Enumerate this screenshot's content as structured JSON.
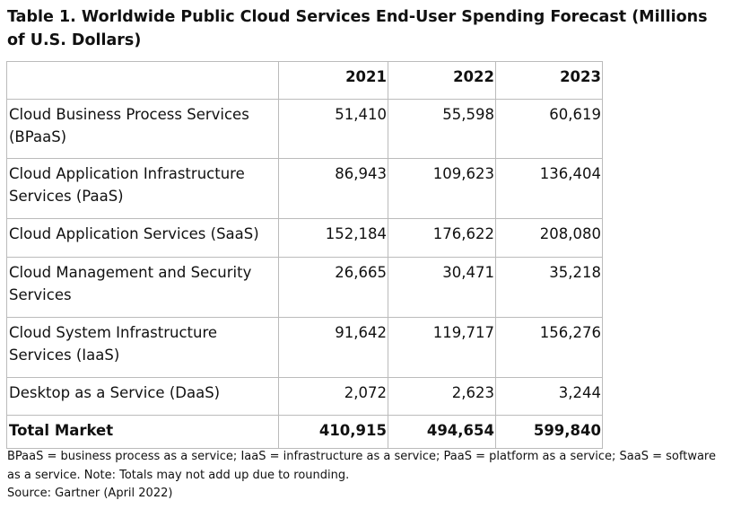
{
  "title": "Table 1. Worldwide Public Cloud Services End-User Spending Forecast (Millions of U.S. Dollars)",
  "table": {
    "header": [
      "",
      "2021",
      "2022",
      "2023"
    ],
    "rows": [
      [
        "Cloud Business Process Services (BPaaS)",
        "51,410",
        "55,598",
        "60,619"
      ],
      [
        "Cloud Application Infrastructure Services (PaaS)",
        "86,943",
        "109,623",
        "136,404"
      ],
      [
        "Cloud Application Services (SaaS)",
        "152,184",
        "176,622",
        "208,080"
      ],
      [
        "Cloud Management and Security Services",
        "26,665",
        "30,471",
        "35,218"
      ],
      [
        "Cloud System Infrastructure Services (IaaS)",
        "91,642",
        "119,717",
        "156,276"
      ],
      [
        "Desktop as a Service (DaaS)",
        "2,072",
        "2,623",
        "3,244"
      ]
    ],
    "total": [
      "Total Market",
      "410,915",
      "494,654",
      "599,840"
    ]
  },
  "note": "BPaaS = business process as a service; IaaS = infrastructure as a service; PaaS = platform as a service; SaaS = software as a service. Note: Totals may not add up due to rounding.",
  "source": "Source: Gartner (April 2022)"
}
